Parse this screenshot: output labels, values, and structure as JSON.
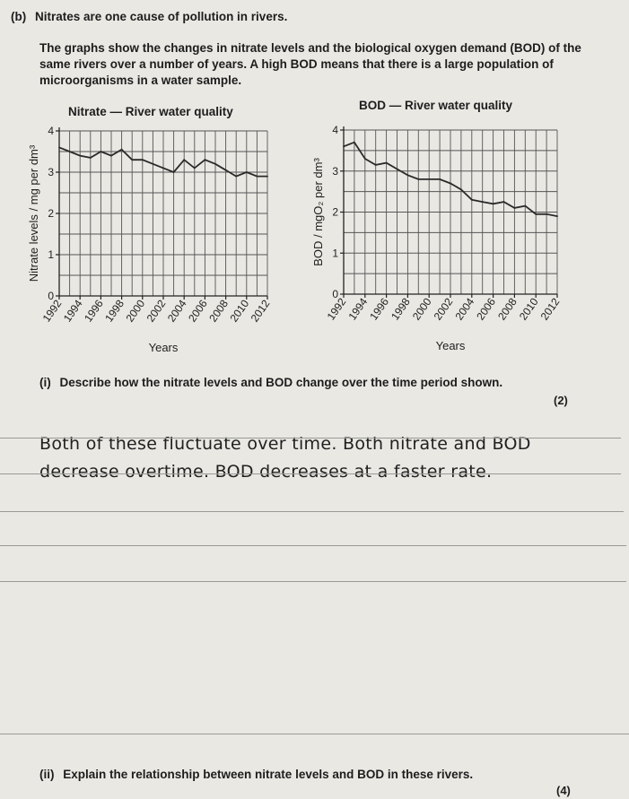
{
  "question": {
    "part_label": "(b)",
    "part_title": "Nitrates are one cause of pollution in rivers.",
    "intro": "The graphs show the changes in nitrate levels and the biological oxygen demand (BOD) of the same rivers over a number of years. A high BOD means that there is a large population of microorganisms in a water sample.",
    "sub_i": {
      "label": "(i)",
      "text": "Describe how the nitrate levels and BOD change over the time period shown.",
      "marks": "(2)"
    },
    "answer_lines": [
      "Both of these fluctuate over time. Both nitrate and BOD",
      "decrease overtime. BOD decreases at a faster rate."
    ],
    "sub_ii": {
      "label": "(ii)",
      "text": "Explain the relationship between nitrate levels and BOD in these rivers.",
      "marks": "(4)"
    }
  },
  "chart_data": [
    {
      "type": "line",
      "title": "Nitrate — River water quality",
      "xlabel": "Years",
      "ylabel": "Nitrate levels / mg per dm³",
      "ylim": [
        0,
        4
      ],
      "xlim": [
        1992,
        2012
      ],
      "yticks": [
        "0",
        "1",
        "2",
        "3",
        "4"
      ],
      "xticks": [
        "1992",
        "1994",
        "1996",
        "1998",
        "2000",
        "2002",
        "2004",
        "2006",
        "2008",
        "2010",
        "2012"
      ],
      "grid": true,
      "color": "#2a2a2a",
      "x": [
        1992,
        1993,
        1994,
        1995,
        1996,
        1997,
        1998,
        1999,
        2000,
        2001,
        2002,
        2003,
        2004,
        2005,
        2006,
        2007,
        2008,
        2009,
        2010,
        2011,
        2012
      ],
      "y": [
        3.6,
        3.5,
        3.4,
        3.35,
        3.5,
        3.4,
        3.55,
        3.3,
        3.3,
        3.2,
        3.1,
        3.0,
        3.3,
        3.1,
        3.3,
        3.2,
        3.05,
        2.9,
        3.0,
        2.9,
        2.9
      ]
    },
    {
      "type": "line",
      "title": "BOD — River water quality",
      "xlabel": "Years",
      "ylabel": "BOD / mgO₂ per dm³",
      "ylim": [
        0,
        4
      ],
      "xlim": [
        1992,
        2012
      ],
      "yticks": [
        "0",
        "1",
        "2",
        "3",
        "4"
      ],
      "xticks": [
        "1992",
        "1994",
        "1996",
        "1998",
        "2000",
        "2002",
        "2004",
        "2006",
        "2008",
        "2010",
        "2012"
      ],
      "grid": true,
      "color": "#2a2a2a",
      "x": [
        1992,
        1993,
        1994,
        1995,
        1996,
        1997,
        1998,
        1999,
        2000,
        2001,
        2002,
        2003,
        2004,
        2005,
        2006,
        2007,
        2008,
        2009,
        2010,
        2011,
        2012
      ],
      "y": [
        3.6,
        3.7,
        3.3,
        3.15,
        3.2,
        3.05,
        2.9,
        2.8,
        2.8,
        2.8,
        2.7,
        2.55,
        2.3,
        2.25,
        2.2,
        2.25,
        2.1,
        2.15,
        1.95,
        1.95,
        1.9
      ]
    }
  ]
}
